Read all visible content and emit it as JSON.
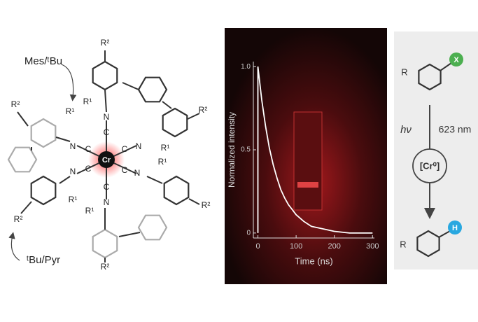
{
  "molecule": {
    "center": "Cr",
    "labels": [
      "R²",
      "R¹",
      "N",
      "C",
      "R²",
      "R¹",
      "N",
      "C",
      "R²",
      "R¹",
      "N",
      "C",
      "R¹",
      "R²",
      "N",
      "C",
      "R²",
      "R¹",
      "N",
      "C",
      "R¹",
      "R²",
      "N",
      "C"
    ],
    "annotation_top": "Mes/ᵗBu",
    "annotation_bottom": "ᵗBu/Pyr"
  },
  "chart_data": {
    "type": "line",
    "xlabel": "Time (ns)",
    "ylabel": "Normalized intensity",
    "x": [
      0,
      0,
      10,
      20,
      30,
      40,
      50,
      60,
      70,
      80,
      90,
      100,
      120,
      140,
      160,
      180,
      200,
      240,
      300
    ],
    "values": [
      0,
      1,
      0.8,
      0.64,
      0.51,
      0.41,
      0.33,
      0.26,
      0.21,
      0.17,
      0.14,
      0.11,
      0.07,
      0.04,
      0.03,
      0.02,
      0.01,
      0,
      0
    ],
    "color": "#ffffff",
    "xlim": [
      -12,
      305
    ],
    "ylim": [
      -0.03,
      1.03
    ],
    "xticks": [
      0,
      100,
      200,
      300
    ],
    "yticks": [
      0,
      0.5,
      {
        "value": 1,
        "label": "1.0"
      }
    ],
    "grid": false
  },
  "scheme": {
    "substituent": "R",
    "leaving_group": "X",
    "light": "hν",
    "wavelength": "623 nm",
    "catalyst": "[Cr⁰]",
    "product_substituent": "R",
    "product_atom": "H"
  }
}
